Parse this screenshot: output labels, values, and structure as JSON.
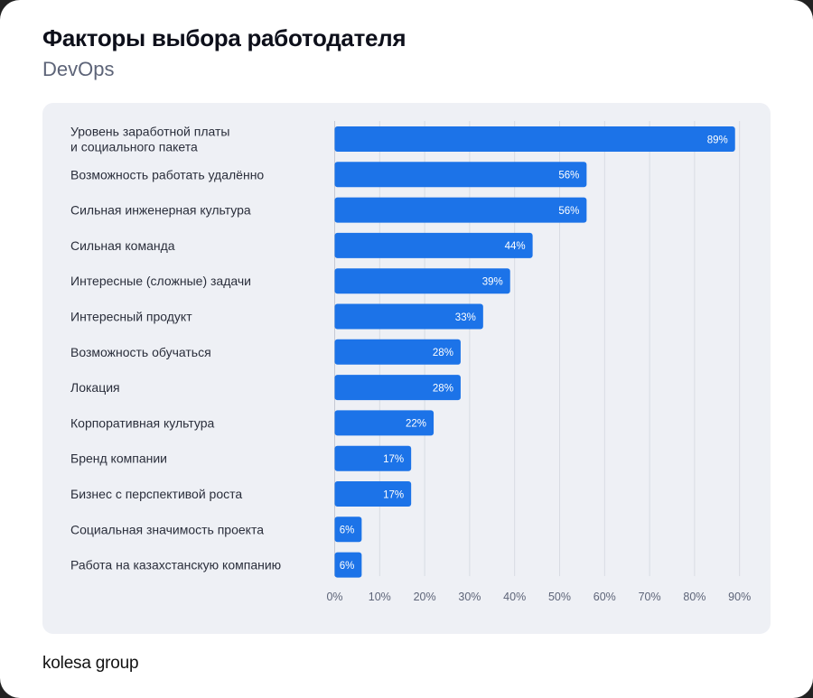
{
  "header": {
    "title": "Факторы выбора работодателя",
    "subtitle": "DevOps"
  },
  "footer": {
    "logo_text": "kolesa group"
  },
  "colors": {
    "bar": "#1c73e8",
    "bar_label": "#ffffff",
    "category_text": "#2a2e3b",
    "tick_text": "#5d6478",
    "grid": "#d8dbe3",
    "panel": "#eef0f5"
  },
  "chart_data": {
    "type": "bar",
    "orientation": "horizontal",
    "title": "Факторы выбора работодателя",
    "subtitle": "DevOps",
    "categories": [
      [
        "Уровень заработной платы",
        "и социального пакета"
      ],
      [
        "Возможность работать удалённо"
      ],
      [
        "Сильная инженерная культура"
      ],
      [
        "Сильная команда"
      ],
      [
        "Интересные (сложные) задачи"
      ],
      [
        "Интересный продукт"
      ],
      [
        "Возможность обучаться"
      ],
      [
        "Локация"
      ],
      [
        "Корпоративная культура"
      ],
      [
        "Бренд компании"
      ],
      [
        "Бизнес с перспективой роста"
      ],
      [
        "Социальная значимость проекта"
      ],
      [
        "Работа на казахстанскую компанию"
      ]
    ],
    "values": [
      89,
      56,
      56,
      44,
      39,
      33,
      28,
      28,
      22,
      17,
      17,
      6,
      6
    ],
    "value_labels": [
      "89%",
      "56%",
      "56%",
      "44%",
      "39%",
      "33%",
      "28%",
      "28%",
      "22%",
      "17%",
      "17%",
      "6%",
      "6%"
    ],
    "xlim": [
      0,
      90
    ],
    "x_ticks": [
      0,
      10,
      20,
      30,
      40,
      50,
      60,
      70,
      80,
      90
    ],
    "x_tick_labels": [
      "0%",
      "10%",
      "20%",
      "30%",
      "40%",
      "50%",
      "60%",
      "70%",
      "80%",
      "90%"
    ],
    "grid": true,
    "legend": false
  }
}
